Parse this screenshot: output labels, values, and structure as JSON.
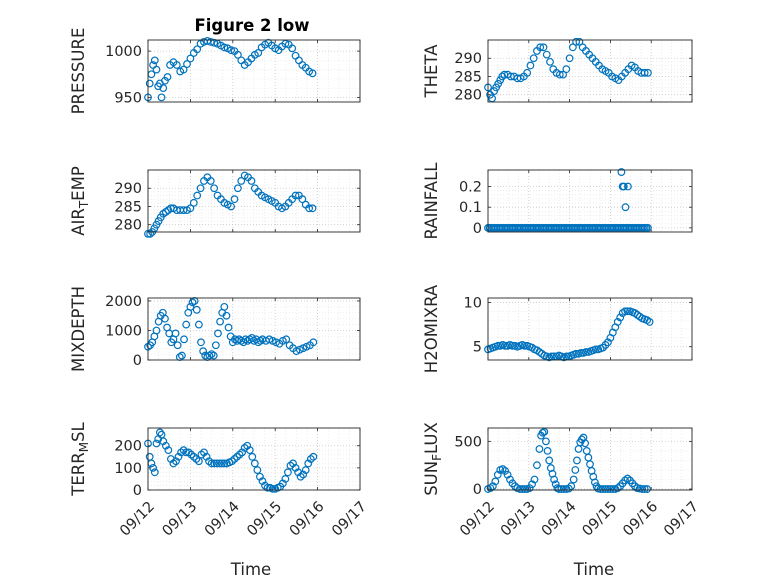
{
  "title": "Figure 2 low",
  "xlabel": "Time",
  "colors": {
    "marker": "#0072bd",
    "axis": "#262626",
    "grid": "#c8c8c8"
  },
  "chart_data": [
    {
      "type": "scatter",
      "ylabel": "PRESSURE",
      "xlim": [
        0,
        5
      ],
      "ylim": [
        945,
        1012
      ],
      "yticks": [
        950,
        1000
      ],
      "ytick_labels": [
        "950",
        "1000"
      ],
      "xticks": [
        0,
        1,
        2,
        3,
        4,
        5
      ],
      "x": [
        0.0,
        0.04,
        0.08,
        0.12,
        0.16,
        0.2,
        0.24,
        0.28,
        0.32,
        0.36,
        0.4,
        0.46,
        0.52,
        0.6,
        0.68,
        0.76,
        0.84,
        0.92,
        1.0,
        1.08,
        1.16,
        1.24,
        1.32,
        1.4,
        1.48,
        1.56,
        1.64,
        1.72,
        1.8,
        1.88,
        1.96,
        2.04,
        2.12,
        2.2,
        2.28,
        2.36,
        2.44,
        2.52,
        2.6,
        2.68,
        2.76,
        2.84,
        2.92,
        3.0,
        3.08,
        3.16,
        3.24,
        3.32,
        3.4,
        3.48,
        3.56,
        3.64,
        3.72,
        3.8,
        3.88
      ],
      "y": [
        950,
        965,
        975,
        985,
        990,
        980,
        962,
        965,
        950,
        960,
        968,
        972,
        985,
        988,
        985,
        978,
        980,
        986,
        992,
        998,
        1002,
        1008,
        1010,
        1011,
        1010,
        1009,
        1008,
        1006,
        1004,
        1003,
        1001,
        1000,
        996,
        990,
        985,
        988,
        992,
        996,
        998,
        1004,
        1007,
        1009,
        1006,
        1003,
        1001,
        1005,
        1008,
        1007,
        1003,
        995,
        990,
        985,
        982,
        978,
        976
      ]
    },
    {
      "type": "scatter",
      "ylabel": "THETA",
      "xlim": [
        0,
        5
      ],
      "ylim": [
        278,
        295
      ],
      "yticks": [
        280,
        285,
        290
      ],
      "ytick_labels": [
        "280",
        "285",
        "290"
      ],
      "xticks": [
        0,
        1,
        2,
        3,
        4,
        5
      ],
      "x": [
        0.0,
        0.05,
        0.1,
        0.15,
        0.2,
        0.25,
        0.3,
        0.35,
        0.4,
        0.48,
        0.56,
        0.64,
        0.72,
        0.8,
        0.88,
        0.96,
        1.04,
        1.12,
        1.2,
        1.28,
        1.36,
        1.44,
        1.52,
        1.6,
        1.68,
        1.76,
        1.84,
        1.92,
        2.0,
        2.08,
        2.16,
        2.24,
        2.32,
        2.4,
        2.48,
        2.56,
        2.64,
        2.72,
        2.8,
        2.88,
        2.96,
        3.04,
        3.12,
        3.2,
        3.28,
        3.36,
        3.44,
        3.52,
        3.6,
        3.68,
        3.76,
        3.84,
        3.92
      ],
      "y": [
        282,
        280,
        279,
        281,
        282,
        283,
        284,
        285,
        285.5,
        285.5,
        285,
        285,
        284.5,
        284.5,
        285,
        286,
        288,
        290,
        292,
        293,
        293,
        291,
        289,
        287,
        286,
        285.5,
        285.5,
        287,
        290,
        293,
        294.5,
        294.5,
        293,
        292,
        291,
        290,
        289,
        288,
        287,
        286.5,
        286,
        285,
        284.5,
        284,
        285,
        286,
        287,
        288,
        287.5,
        286.5,
        286,
        286,
        286
      ]
    },
    {
      "type": "scatter",
      "ylabel": "AIR_TEMP",
      "ylabel_main": "AIR",
      "ylabel_sub": "T",
      "ylabel_rest": "EMP",
      "xlim": [
        0,
        5
      ],
      "ylim": [
        278,
        295
      ],
      "yticks": [
        280,
        285,
        290
      ],
      "ytick_labels": [
        "280",
        "285",
        "290"
      ],
      "xticks": [
        0,
        1,
        2,
        3,
        4,
        5
      ],
      "x": [
        0.0,
        0.05,
        0.1,
        0.15,
        0.2,
        0.25,
        0.3,
        0.36,
        0.42,
        0.48,
        0.54,
        0.6,
        0.68,
        0.76,
        0.84,
        0.92,
        1.0,
        1.08,
        1.16,
        1.24,
        1.32,
        1.4,
        1.48,
        1.56,
        1.64,
        1.72,
        1.8,
        1.88,
        1.96,
        2.04,
        2.12,
        2.2,
        2.28,
        2.36,
        2.44,
        2.52,
        2.6,
        2.68,
        2.76,
        2.84,
        2.92,
        3.0,
        3.08,
        3.16,
        3.24,
        3.32,
        3.4,
        3.48,
        3.56,
        3.64,
        3.72,
        3.8,
        3.88
      ],
      "y": [
        277.5,
        277.5,
        278,
        279,
        280,
        281,
        282,
        283,
        283.5,
        284,
        284.5,
        284.5,
        284,
        284,
        284,
        284,
        284.5,
        286,
        288,
        290,
        292,
        293,
        292,
        290,
        288,
        287,
        286,
        285.5,
        285,
        287,
        290,
        292,
        293.5,
        293,
        292,
        290,
        289,
        288,
        287.5,
        287,
        286.5,
        286,
        285,
        284.5,
        285,
        286,
        287,
        288,
        288,
        287,
        285.5,
        284.5,
        284.5
      ]
    },
    {
      "type": "scatter",
      "ylabel": "RAINFALL",
      "xlim": [
        0,
        5
      ],
      "ylim": [
        -0.02,
        0.28
      ],
      "yticks": [
        0,
        0.1,
        0.2
      ],
      "ytick_labels": [
        "0",
        "0.1",
        "0.2"
      ],
      "xticks": [
        0,
        1,
        2,
        3,
        4,
        5
      ],
      "x_zero_range": [
        0,
        3.95
      ],
      "x_zero_step": 0.04,
      "x": [
        3.27,
        3.3,
        3.33,
        3.37,
        3.43
      ],
      "y": [
        0.27,
        0.2,
        0.2,
        0.1,
        0.2
      ]
    },
    {
      "type": "scatter",
      "ylabel": "MIXDEPTH",
      "xlim": [
        0,
        5
      ],
      "ylim": [
        0,
        2100
      ],
      "yticks": [
        0,
        1000,
        2000
      ],
      "ytick_labels": [
        "0",
        "1000",
        "2000"
      ],
      "xticks": [
        0,
        1,
        2,
        3,
        4,
        5
      ],
      "x": [
        0.0,
        0.05,
        0.1,
        0.15,
        0.2,
        0.25,
        0.3,
        0.35,
        0.4,
        0.45,
        0.5,
        0.55,
        0.6,
        0.65,
        0.7,
        0.75,
        0.8,
        0.85,
        0.9,
        0.95,
        1.0,
        1.05,
        1.1,
        1.15,
        1.2,
        1.25,
        1.3,
        1.35,
        1.4,
        1.45,
        1.5,
        1.55,
        1.6,
        1.65,
        1.7,
        1.75,
        1.8,
        1.85,
        1.9,
        1.95,
        2.0,
        2.05,
        2.1,
        2.15,
        2.2,
        2.25,
        2.3,
        2.35,
        2.4,
        2.45,
        2.5,
        2.55,
        2.6,
        2.65,
        2.7,
        2.78,
        2.86,
        2.94,
        3.02,
        3.1,
        3.18,
        3.26,
        3.34,
        3.42,
        3.5,
        3.58,
        3.66,
        3.74,
        3.82,
        3.9
      ],
      "y": [
        450,
        500,
        600,
        800,
        1000,
        1300,
        1500,
        1600,
        1400,
        1100,
        900,
        600,
        700,
        900,
        500,
        100,
        150,
        700,
        1200,
        1600,
        1800,
        1950,
        2000,
        1700,
        1200,
        600,
        300,
        150,
        100,
        150,
        200,
        150,
        500,
        900,
        1300,
        1600,
        1800,
        1500,
        1100,
        800,
        600,
        700,
        650,
        700,
        650,
        600,
        700,
        650,
        700,
        750,
        650,
        700,
        600,
        650,
        700,
        650,
        700,
        650,
        600,
        550,
        650,
        700,
        500,
        400,
        300,
        350,
        400,
        450,
        500,
        600
      ]
    },
    {
      "type": "scatter",
      "ylabel": "H2OMIXRA",
      "xlim": [
        0,
        5
      ],
      "ylim": [
        3.5,
        10.5
      ],
      "yticks": [
        5,
        10
      ],
      "ytick_labels": [
        "5",
        "10"
      ],
      "xticks": [
        0,
        1,
        2,
        3,
        4,
        5
      ],
      "x": [
        0.0,
        0.06,
        0.12,
        0.18,
        0.24,
        0.3,
        0.36,
        0.42,
        0.48,
        0.54,
        0.6,
        0.66,
        0.72,
        0.78,
        0.84,
        0.9,
        0.96,
        1.02,
        1.08,
        1.14,
        1.2,
        1.26,
        1.32,
        1.38,
        1.44,
        1.5,
        1.56,
        1.62,
        1.68,
        1.74,
        1.8,
        1.86,
        1.92,
        1.98,
        2.04,
        2.1,
        2.16,
        2.22,
        2.28,
        2.34,
        2.4,
        2.46,
        2.52,
        2.58,
        2.64,
        2.7,
        2.76,
        2.82,
        2.88,
        2.94,
        3.0,
        3.06,
        3.12,
        3.18,
        3.24,
        3.3,
        3.36,
        3.42,
        3.48,
        3.54,
        3.6,
        3.66,
        3.72,
        3.78,
        3.84,
        3.9,
        3.96
      ],
      "y": [
        4.7,
        4.8,
        4.9,
        5.0,
        5.1,
        5.1,
        5.2,
        5.1,
        5.1,
        5.2,
        5.1,
        5.1,
        5.0,
        5.1,
        5.2,
        5.1,
        5.1,
        5.0,
        4.9,
        4.7,
        4.6,
        4.4,
        4.2,
        4.0,
        3.9,
        3.8,
        3.9,
        3.9,
        3.9,
        4.0,
        3.9,
        3.8,
        3.9,
        3.9,
        4.0,
        4.1,
        4.2,
        4.2,
        4.3,
        4.3,
        4.4,
        4.4,
        4.5,
        4.6,
        4.7,
        4.7,
        4.8,
        4.9,
        5.2,
        5.5,
        6.0,
        6.6,
        7.2,
        7.8,
        8.3,
        8.8,
        9.0,
        9.0,
        9.0,
        8.9,
        8.8,
        8.6,
        8.4,
        8.2,
        8.1,
        8.0,
        7.8
      ]
    },
    {
      "type": "scatter",
      "ylabel": "TERR_MSL",
      "ylabel_main": "TERR",
      "ylabel_sub": "M",
      "ylabel_rest": "SL",
      "xlim": [
        0,
        5
      ],
      "ylim": [
        0,
        280
      ],
      "yticks": [
        0,
        100,
        200
      ],
      "ytick_labels": [
        "0",
        "100",
        "200"
      ],
      "xticks": [
        0,
        1,
        2,
        3,
        4,
        5
      ],
      "xtick_labels": [
        "09/12",
        "09/13",
        "09/14",
        "09/15",
        "09/16",
        "09/17"
      ],
      "x": [
        0.0,
        0.04,
        0.08,
        0.12,
        0.16,
        0.2,
        0.24,
        0.28,
        0.32,
        0.36,
        0.42,
        0.48,
        0.54,
        0.6,
        0.66,
        0.72,
        0.78,
        0.84,
        0.9,
        0.96,
        1.02,
        1.08,
        1.14,
        1.2,
        1.26,
        1.32,
        1.38,
        1.44,
        1.5,
        1.56,
        1.62,
        1.68,
        1.74,
        1.8,
        1.86,
        1.92,
        1.98,
        2.04,
        2.1,
        2.16,
        2.22,
        2.28,
        2.34,
        2.4,
        2.46,
        2.52,
        2.58,
        2.64,
        2.7,
        2.76,
        2.82,
        2.88,
        2.94,
        3.0,
        3.06,
        3.12,
        3.18,
        3.24,
        3.3,
        3.36,
        3.42,
        3.48,
        3.54,
        3.6,
        3.66,
        3.72,
        3.78,
        3.84,
        3.9
      ],
      "y": [
        210,
        150,
        120,
        100,
        80,
        210,
        230,
        260,
        250,
        220,
        200,
        180,
        140,
        120,
        130,
        150,
        170,
        180,
        170,
        170,
        160,
        150,
        140,
        130,
        160,
        170,
        150,
        130,
        120,
        120,
        120,
        120,
        120,
        120,
        120,
        125,
        130,
        140,
        150,
        160,
        170,
        190,
        200,
        180,
        150,
        120,
        90,
        60,
        40,
        20,
        10,
        10,
        5,
        5,
        10,
        15,
        30,
        50,
        80,
        110,
        120,
        100,
        80,
        60,
        70,
        90,
        120,
        140,
        150
      ]
    },
    {
      "type": "scatter",
      "ylabel": "SUN_FLUX",
      "ylabel_main": "SUN",
      "ylabel_sub": "F",
      "ylabel_rest": "LUX",
      "xlim": [
        0,
        5
      ],
      "ylim": [
        -10,
        640
      ],
      "yticks": [
        0,
        500
      ],
      "ytick_labels": [
        "0",
        "500"
      ],
      "xticks": [
        0,
        1,
        2,
        3,
        4,
        5
      ],
      "xtick_labels": [
        "09/12",
        "09/13",
        "09/14",
        "09/15",
        "09/16",
        "09/17"
      ],
      "x": [
        0.0,
        0.06,
        0.12,
        0.18,
        0.24,
        0.3,
        0.36,
        0.42,
        0.48,
        0.54,
        0.6,
        0.66,
        0.72,
        0.78,
        0.84,
        0.9,
        0.96,
        1.02,
        1.08,
        1.14,
        1.2,
        1.26,
        1.3,
        1.34,
        1.38,
        1.42,
        1.46,
        1.5,
        1.54,
        1.58,
        1.62,
        1.66,
        1.7,
        1.74,
        1.8,
        1.86,
        1.92,
        1.98,
        2.04,
        2.1,
        2.14,
        2.18,
        2.22,
        2.26,
        2.3,
        2.34,
        2.38,
        2.42,
        2.46,
        2.5,
        2.54,
        2.58,
        2.62,
        2.66,
        2.7,
        2.76,
        2.82,
        2.88,
        2.94,
        3.0,
        3.06,
        3.12,
        3.18,
        3.24,
        3.3,
        3.36,
        3.42,
        3.48,
        3.54,
        3.6,
        3.66,
        3.72,
        3.78,
        3.84,
        3.9
      ],
      "y": [
        0,
        10,
        30,
        80,
        150,
        200,
        210,
        190,
        150,
        100,
        60,
        30,
        10,
        0,
        0,
        0,
        0,
        10,
        50,
        100,
        250,
        420,
        560,
        590,
        600,
        500,
        400,
        300,
        220,
        160,
        100,
        50,
        10,
        0,
        0,
        0,
        0,
        5,
        30,
        100,
        200,
        300,
        420,
        490,
        520,
        540,
        480,
        400,
        330,
        260,
        190,
        130,
        70,
        30,
        5,
        0,
        0,
        0,
        0,
        0,
        0,
        0,
        10,
        30,
        60,
        90,
        110,
        90,
        60,
        30,
        10,
        5,
        0,
        0,
        0
      ]
    }
  ]
}
